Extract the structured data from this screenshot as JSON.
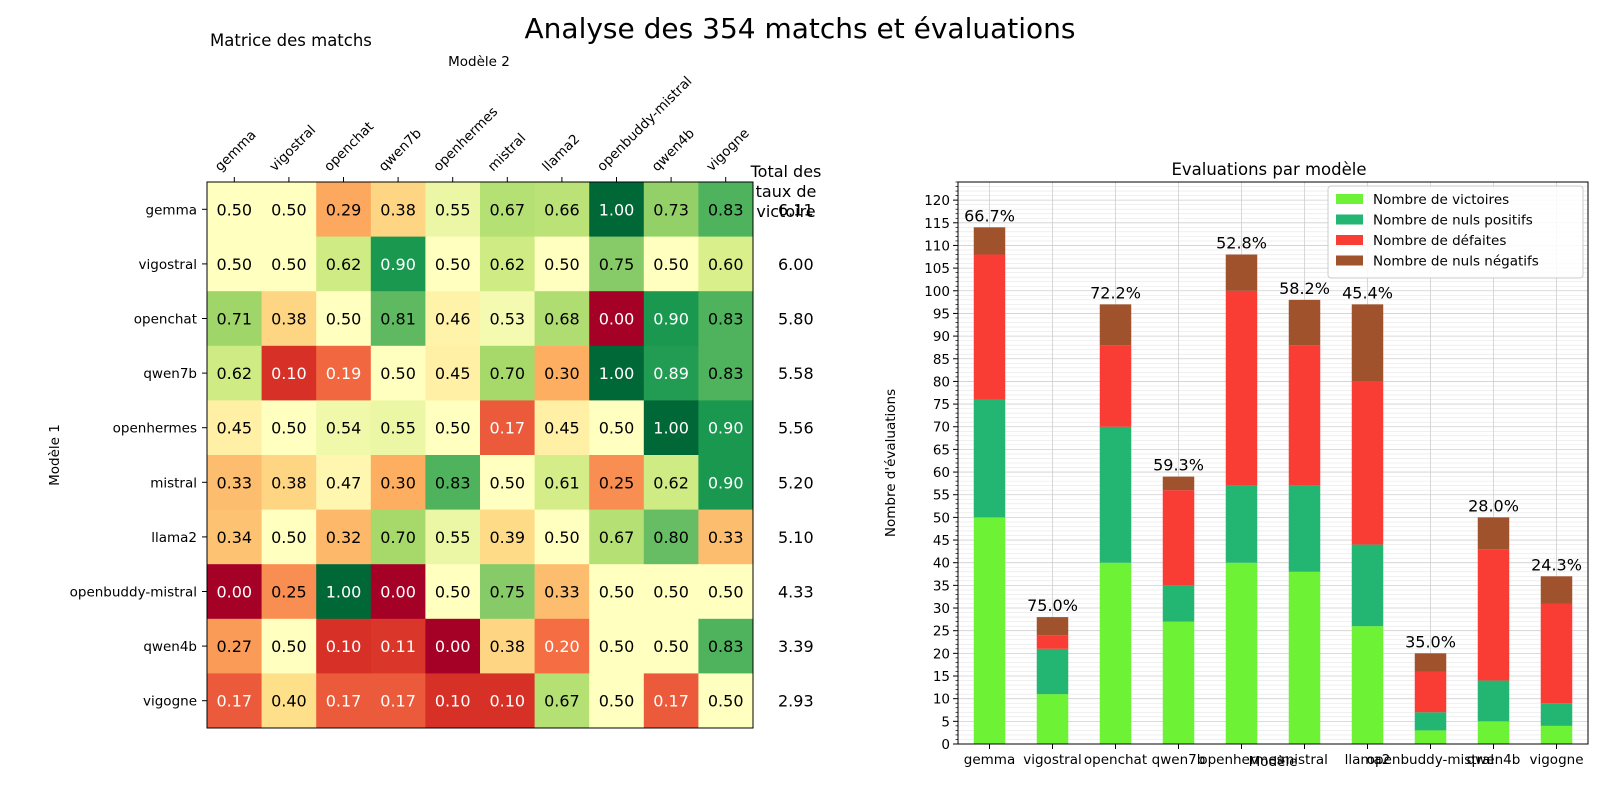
{
  "title": "Analyse des 354 matchs et évaluations",
  "chart_data": [
    {
      "type": "heatmap",
      "title": "Matrice des matchs",
      "xlabel": "Modèle 2",
      "ylabel": "Modèle 1",
      "models": [
        "gemma",
        "vigostral",
        "openchat",
        "qwen7b",
        "openhermes",
        "mistral",
        "llama2",
        "openbuddy-mistral",
        "qwen4b",
        "vigogne"
      ],
      "values": [
        [
          0.5,
          0.5,
          0.29,
          0.38,
          0.55,
          0.67,
          0.66,
          1.0,
          0.73,
          0.83
        ],
        [
          0.5,
          0.5,
          0.62,
          0.9,
          0.5,
          0.62,
          0.5,
          0.75,
          0.5,
          0.6
        ],
        [
          0.71,
          0.38,
          0.5,
          0.81,
          0.46,
          0.53,
          0.68,
          0.0,
          0.9,
          0.83
        ],
        [
          0.62,
          0.1,
          0.19,
          0.5,
          0.45,
          0.7,
          0.3,
          1.0,
          0.89,
          0.83
        ],
        [
          0.45,
          0.5,
          0.54,
          0.55,
          0.5,
          0.17,
          0.45,
          0.5,
          1.0,
          0.9
        ],
        [
          0.33,
          0.38,
          0.47,
          0.3,
          0.83,
          0.5,
          0.61,
          0.25,
          0.62,
          0.9
        ],
        [
          0.34,
          0.5,
          0.32,
          0.7,
          0.55,
          0.39,
          0.5,
          0.67,
          0.8,
          0.33
        ],
        [
          0.0,
          0.25,
          1.0,
          0.0,
          0.5,
          0.75,
          0.33,
          0.5,
          0.5,
          0.5
        ],
        [
          0.27,
          0.5,
          0.1,
          0.11,
          0.0,
          0.38,
          0.2,
          0.5,
          0.5,
          0.83
        ],
        [
          0.17,
          0.4,
          0.17,
          0.17,
          0.1,
          0.1,
          0.67,
          0.5,
          0.17,
          0.5
        ]
      ],
      "value_format": "2 decimals",
      "colormap": "RdYlGn",
      "vmin": 0,
      "vmax": 1,
      "totals_header": "Total des taux de victoire",
      "totals": [
        "6.11",
        "6.00",
        "5.80",
        "5.58",
        "5.56",
        "5.20",
        "5.10",
        "4.33",
        "3.39",
        "2.93"
      ]
    },
    {
      "type": "bar",
      "stacked": true,
      "title": "Evaluations par modèle",
      "xlabel": "Modèle",
      "ylabel": "Nombre d'évaluations",
      "categories": [
        "gemma",
        "vigostral",
        "openchat",
        "qwen7b",
        "openhermes",
        "mistral",
        "llama2",
        "openbuddy-mistral",
        "qwen4b",
        "vigogne"
      ],
      "series": [
        {
          "name": "Nombre de victoires",
          "color": "#6ef236",
          "values": [
            50,
            11,
            40,
            27,
            40,
            38,
            26,
            3,
            5,
            4
          ]
        },
        {
          "name": "Nombre de nuls positifs",
          "color": "#23b572",
          "values": [
            26,
            10,
            30,
            8,
            17,
            19,
            18,
            4,
            9,
            5
          ]
        },
        {
          "name": "Nombre de défaites",
          "color": "#f93d35",
          "values": [
            32,
            3,
            18,
            21,
            43,
            31,
            36,
            9,
            29,
            22
          ]
        },
        {
          "name": "Nombre de nuls négatifs",
          "color": "#a0522d",
          "values": [
            6,
            4,
            9,
            3,
            8,
            10,
            17,
            4,
            7,
            6
          ]
        }
      ],
      "bar_labels": [
        "66.7%",
        "75.0%",
        "72.2%",
        "59.3%",
        "52.8%",
        "58.2%",
        "45.4%",
        "35.0%",
        "28.0%",
        "24.3%"
      ],
      "ylim": [
        0,
        124
      ],
      "yticks": [
        0,
        5,
        10,
        15,
        20,
        25,
        30,
        35,
        40,
        45,
        50,
        55,
        60,
        65,
        70,
        75,
        80,
        85,
        90,
        95,
        100,
        105,
        110,
        115,
        120
      ],
      "grid": true,
      "minor_grid": true,
      "legend_position": "top-right"
    }
  ]
}
